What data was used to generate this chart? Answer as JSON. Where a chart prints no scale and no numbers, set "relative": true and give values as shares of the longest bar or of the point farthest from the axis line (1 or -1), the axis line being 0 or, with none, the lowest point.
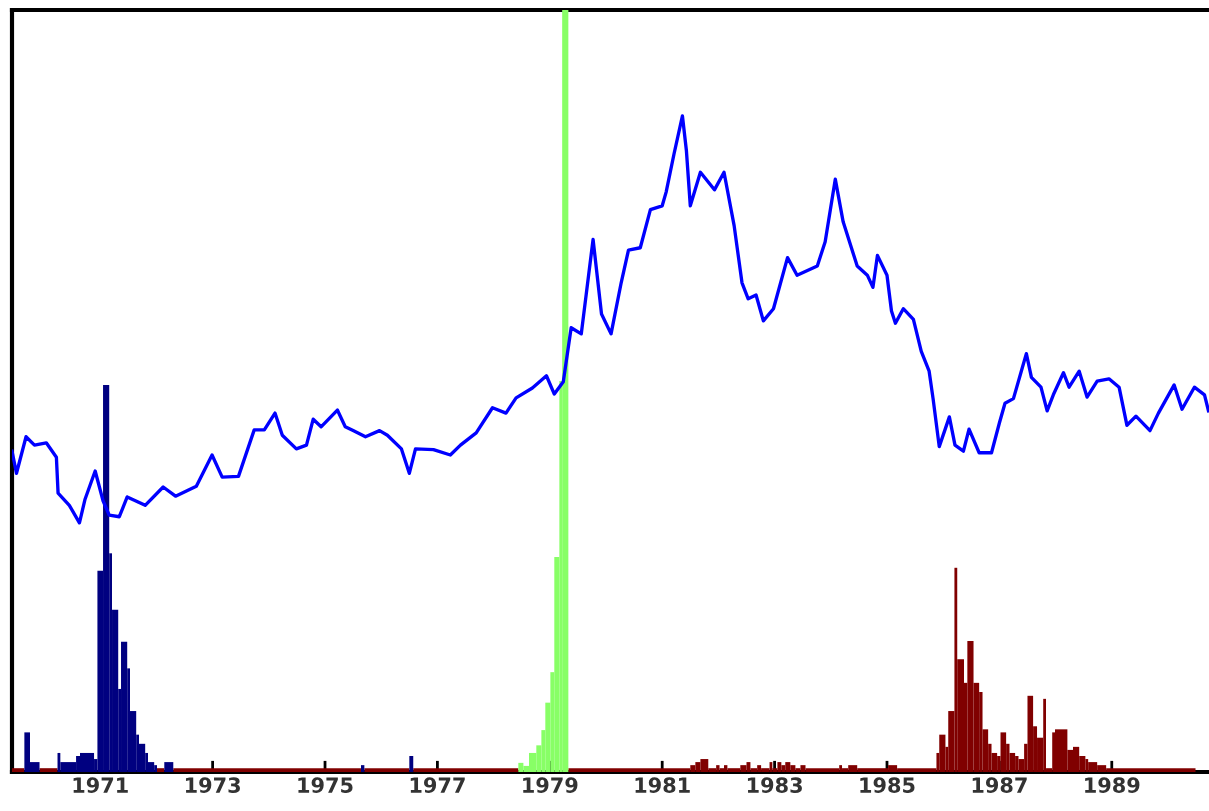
{
  "chart_data": {
    "type": "histogram",
    "relative": true,
    "xlim": [
      1969.43,
      1990.73
    ],
    "xticks": [
      1971,
      1973,
      1975,
      1977,
      1979,
      1981,
      1983,
      1985,
      1987,
      1989
    ],
    "series": [
      {
        "type": "line",
        "color": "#0000ff",
        "x": [
          1969.43,
          1969.51,
          1969.68,
          1969.83,
          1970.04,
          1970.22,
          1970.25,
          1970.45,
          1970.63,
          1970.73,
          1970.91,
          1971.05,
          1971.16,
          1971.34,
          1971.48,
          1971.8,
          1972.12,
          1972.34,
          1972.71,
          1972.99,
          1973.17,
          1973.46,
          1973.74,
          1973.92,
          1974.11,
          1974.24,
          1974.49,
          1974.67,
          1974.79,
          1974.93,
          1975.22,
          1975.36,
          1975.5,
          1975.72,
          1975.97,
          1976.11,
          1976.36,
          1976.5,
          1976.61,
          1976.93,
          1977.23,
          1977.41,
          1977.69,
          1977.98,
          1978.22,
          1978.4,
          1978.69,
          1978.94,
          1979.08,
          1979.24,
          1979.38,
          1979.56,
          1979.77,
          1979.92,
          1980.09,
          1980.27,
          1980.4,
          1980.61,
          1980.79,
          1981.0,
          1981.07,
          1981.21,
          1981.36,
          1981.43,
          1981.5,
          1981.68,
          1981.93,
          1982.1,
          1982.28,
          1982.42,
          1982.53,
          1982.67,
          1982.8,
          1982.98,
          1983.23,
          1983.4,
          1983.76,
          1983.9,
          1984.08,
          1984.22,
          1984.47,
          1984.65,
          1984.75,
          1984.83,
          1985.0,
          1985.08,
          1985.15,
          1985.29,
          1985.47,
          1985.61,
          1985.75,
          1985.82,
          1985.93,
          1986.11,
          1986.21,
          1986.36,
          1986.46,
          1986.64,
          1986.86,
          1987.0,
          1987.1,
          1987.25,
          1987.39,
          1987.48,
          1987.57,
          1987.74,
          1987.85,
          1987.96,
          1988.14,
          1988.24,
          1988.42,
          1988.56,
          1988.74,
          1988.95,
          1989.13,
          1989.27,
          1989.43,
          1989.68,
          1989.83,
          1990.11,
          1990.25,
          1990.47,
          1990.65,
          1990.72
        ],
        "values": [
          0.421,
          0.392,
          0.44,
          0.429,
          0.432,
          0.413,
          0.366,
          0.35,
          0.327,
          0.358,
          0.395,
          0.356,
          0.337,
          0.335,
          0.361,
          0.35,
          0.374,
          0.362,
          0.375,
          0.416,
          0.387,
          0.388,
          0.449,
          0.449,
          0.471,
          0.442,
          0.424,
          0.429,
          0.463,
          0.453,
          0.475,
          0.453,
          0.448,
          0.44,
          0.448,
          0.442,
          0.424,
          0.392,
          0.424,
          0.423,
          0.416,
          0.429,
          0.445,
          0.478,
          0.471,
          0.491,
          0.504,
          0.52,
          0.496,
          0.512,
          0.583,
          0.575,
          0.699,
          0.601,
          0.575,
          0.642,
          0.685,
          0.688,
          0.738,
          0.743,
          0.761,
          0.811,
          0.861,
          0.816,
          0.743,
          0.787,
          0.764,
          0.787,
          0.717,
          0.642,
          0.621,
          0.626,
          0.592,
          0.608,
          0.675,
          0.652,
          0.664,
          0.696,
          0.778,
          0.722,
          0.664,
          0.652,
          0.636,
          0.678,
          0.652,
          0.605,
          0.589,
          0.608,
          0.594,
          0.552,
          0.526,
          0.49,
          0.427,
          0.466,
          0.429,
          0.421,
          0.45,
          0.419,
          0.419,
          0.458,
          0.484,
          0.49,
          0.526,
          0.549,
          0.518,
          0.505,
          0.474,
          0.495,
          0.524,
          0.505,
          0.526,
          0.492,
          0.513,
          0.516,
          0.505,
          0.455,
          0.467,
          0.448,
          0.471,
          0.508,
          0.476,
          0.505,
          0.495,
          0.474
        ]
      },
      {
        "color": "#800000",
        "bins": [
          1969.43,
          1969.65,
          1969.92,
          1970.24,
          1972.01,
          1972.14,
          1972.3,
          1975.64,
          1975.7,
          1976.5,
          1976.57,
          1978.44,
          1979.33,
          1981.5,
          1981.59,
          1981.68,
          1981.82,
          1981.96,
          1982.02,
          1982.1,
          1982.16,
          1982.39,
          1982.5,
          1982.57,
          1982.69,
          1982.76,
          1982.91,
          1982.96,
          1983.05,
          1983.12,
          1983.19,
          1983.28,
          1983.37,
          1983.46,
          1983.55,
          1984.15,
          1984.2,
          1984.31,
          1984.47,
          1985.02,
          1985.18,
          1985.88,
          1985.93,
          1986.04,
          1986.09,
          1986.2,
          1986.25,
          1986.37,
          1986.43,
          1986.54,
          1986.64,
          1986.7,
          1986.8,
          1986.86,
          1986.96,
          1987.02,
          1987.12,
          1987.18,
          1987.28,
          1987.34,
          1987.44,
          1987.5,
          1987.6,
          1987.67,
          1987.78,
          1987.83,
          1987.94,
          1987.99,
          1988.21,
          1988.31,
          1988.42,
          1988.53,
          1988.58,
          1988.74,
          1988.9,
          1990.49
        ],
        "values": [
          0.005,
          null,
          0.005,
          null,
          0.005,
          null,
          0.005,
          null,
          0.005,
          null,
          0.005,
          null,
          0.005,
          0.009,
          0.013,
          0.017,
          0.005,
          0.009,
          0.005,
          0.009,
          0.005,
          0.009,
          0.013,
          0.005,
          0.009,
          0.005,
          0.013,
          0.005,
          0.013,
          0.009,
          0.013,
          0.009,
          0.005,
          0.009,
          0.005,
          0.009,
          0.005,
          0.009,
          0.005,
          0.009,
          0.005,
          0.025,
          0.049,
          0.033,
          0.08,
          0.268,
          0.148,
          0.117,
          0.172,
          0.117,
          0.105,
          0.056,
          0.037,
          0.025,
          0.021,
          0.052,
          0.037,
          0.025,
          0.021,
          0.017,
          0.037,
          0.1,
          0.06,
          0.045,
          0.096,
          0.005,
          0.052,
          0.056,
          0.029,
          0.033,
          0.021,
          0.017,
          0.013,
          0.009,
          0.005
        ]
      },
      {
        "color": "#000080",
        "bins": [
          1969.65,
          1969.75,
          1969.92,
          1970.24,
          1970.29,
          1970.57,
          1970.64,
          1970.89,
          1970.95,
          1971.05,
          1971.16,
          1971.21,
          1971.32,
          1971.37,
          1971.48,
          1971.53,
          1971.64,
          1971.69,
          1971.8,
          1971.85,
          1971.96,
          1972.01,
          1972.14,
          1972.3,
          1975.64,
          1975.7,
          1976.5,
          1976.57
        ],
        "values": [
          0.052,
          0.013,
          null,
          0.025,
          0.013,
          0.021,
          0.025,
          0.017,
          0.264,
          0.508,
          0.287,
          0.213,
          0.109,
          0.171,
          0.136,
          0.08,
          0.049,
          0.037,
          0.025,
          0.013,
          0.009,
          null,
          0.013,
          null,
          0.009,
          null,
          0.021
        ]
      },
      {
        "color": "#88ff66",
        "bins": [
          1978.44,
          1978.53,
          1978.63,
          1978.76,
          1978.85,
          1978.92,
          1979.01,
          1979.08,
          1979.17,
          1979.22,
          1979.33
        ],
        "values": [
          0.012,
          0.008,
          0.025,
          0.035,
          0.055,
          0.091,
          0.131,
          0.282,
          0.513,
          1.0
        ]
      }
    ]
  }
}
